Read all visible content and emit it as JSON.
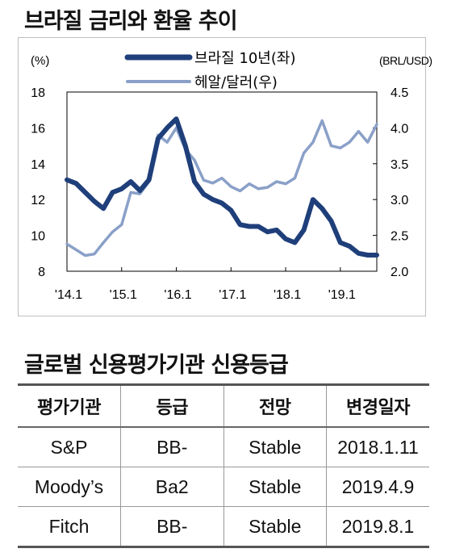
{
  "title": "브라질 금리와 환율 추이",
  "chart_data": {
    "type": "line",
    "left_axis_unit": "(%)",
    "right_axis_unit": "(BRL/USD)",
    "x_ticks": [
      "'14.1",
      "'15.1",
      "'16.1",
      "'17.1",
      "'18.1",
      "'19.1"
    ],
    "left_ticks": [
      "18",
      "16",
      "14",
      "12",
      "10",
      "8"
    ],
    "right_ticks": [
      "4.5",
      "4.0",
      "3.5",
      "3.0",
      "2.5",
      "2.0"
    ],
    "left_range": [
      8,
      18
    ],
    "right_range": [
      2.0,
      4.5
    ],
    "legend_position": "top-center",
    "x_range": [
      "2014-01",
      "2019-09"
    ],
    "series": [
      {
        "name": "브라질 10년(좌)",
        "axis": "left",
        "color": "#1f3f7a",
        "x": [
          "2014-01",
          "2014-03",
          "2014-05",
          "2014-07",
          "2014-09",
          "2014-11",
          "2015-01",
          "2015-03",
          "2015-05",
          "2015-07",
          "2015-09",
          "2015-11",
          "2016-01",
          "2016-03",
          "2016-05",
          "2016-07",
          "2016-09",
          "2016-11",
          "2017-01",
          "2017-03",
          "2017-05",
          "2017-07",
          "2017-09",
          "2017-11",
          "2018-01",
          "2018-03",
          "2018-05",
          "2018-07",
          "2018-09",
          "2018-11",
          "2019-01",
          "2019-03",
          "2019-05",
          "2019-07",
          "2019-09"
        ],
        "values": [
          13.1,
          12.9,
          12.4,
          11.9,
          11.5,
          12.4,
          12.6,
          13.0,
          12.5,
          13.1,
          15.4,
          16.0,
          16.5,
          15.0,
          13.0,
          12.3,
          12.0,
          11.8,
          11.4,
          10.6,
          10.5,
          10.5,
          10.2,
          10.3,
          9.8,
          9.6,
          10.3,
          12.0,
          11.5,
          10.8,
          9.6,
          9.4,
          9.0,
          8.9,
          8.9
        ]
      },
      {
        "name": "헤알/달러(우)",
        "axis": "right",
        "color": "#8aa0c8",
        "x": [
          "2014-01",
          "2014-03",
          "2014-05",
          "2014-07",
          "2014-09",
          "2014-11",
          "2015-01",
          "2015-03",
          "2015-05",
          "2015-07",
          "2015-09",
          "2015-11",
          "2016-01",
          "2016-03",
          "2016-05",
          "2016-07",
          "2016-09",
          "2016-11",
          "2017-01",
          "2017-03",
          "2017-05",
          "2017-07",
          "2017-09",
          "2017-11",
          "2018-01",
          "2018-03",
          "2018-05",
          "2018-07",
          "2018-09",
          "2018-11",
          "2019-01",
          "2019-03",
          "2019-05",
          "2019-07",
          "2019-09"
        ],
        "values": [
          2.38,
          2.3,
          2.22,
          2.24,
          2.4,
          2.55,
          2.65,
          3.1,
          3.08,
          3.25,
          3.9,
          3.8,
          4.0,
          3.7,
          3.55,
          3.27,
          3.23,
          3.3,
          3.18,
          3.12,
          3.22,
          3.15,
          3.17,
          3.25,
          3.22,
          3.3,
          3.65,
          3.8,
          4.1,
          3.75,
          3.72,
          3.8,
          3.95,
          3.8,
          4.05
        ]
      }
    ]
  },
  "table": {
    "title": "글로벌 신용평가기관 신용등급",
    "headers": [
      "평가기관",
      "등급",
      "전망",
      "변경일자"
    ],
    "rows": [
      [
        "S&P",
        "BB-",
        "Stable",
        "2018.1.11"
      ],
      [
        "Moody’s",
        "Ba2",
        "Stable",
        "2019.4.9"
      ],
      [
        "Fitch",
        "BB-",
        "Stable",
        "2019.8.1"
      ]
    ]
  }
}
